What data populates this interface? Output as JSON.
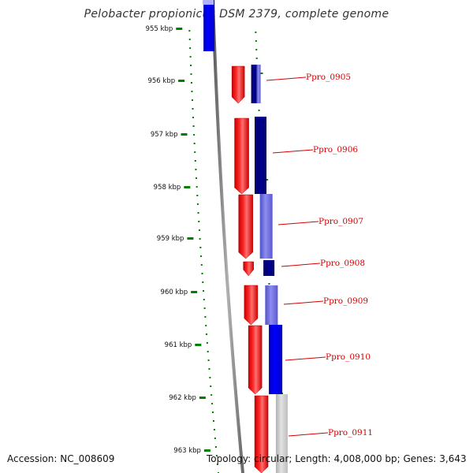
{
  "title": "Pelobacter propionicus DSM 2379, complete genome",
  "colors": {
    "forward": "#ff0000",
    "reverse_blue": "#0000ee",
    "reverse_navy": "#000080",
    "reverse_periwinkle": "#6b6bdc",
    "reverse_grey": "#c8c8c8",
    "backbone": "#8a8a8a",
    "ticks": "#008000",
    "labels": "#d40000"
  },
  "kbp_ticks": [
    "955 kbp",
    "956 kbp",
    "957 kbp",
    "958 kbp",
    "959 kbp",
    "960 kbp",
    "961 kbp",
    "962 kbp",
    "963 kbp"
  ],
  "genes": [
    {
      "label": "Ppro_0905"
    },
    {
      "label": "Ppro_0906"
    },
    {
      "label": "Ppro_0907"
    },
    {
      "label": "Ppro_0908"
    },
    {
      "label": "Ppro_0909"
    },
    {
      "label": "Ppro_0910"
    },
    {
      "label": "Ppro_0911"
    }
  ],
  "footer": {
    "accession": "Accession: NC_008609",
    "summary": "Topology: circular; Length: 4,008,000 bp; Genes: 3,643"
  }
}
